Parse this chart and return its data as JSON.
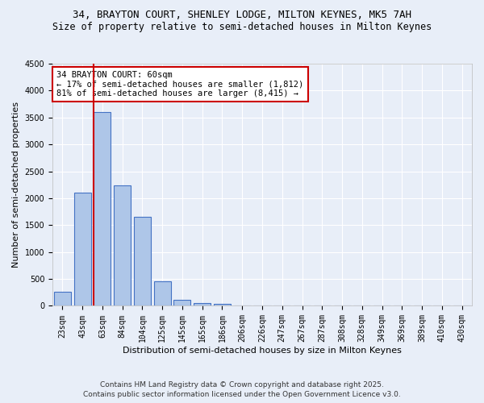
{
  "title1": "34, BRAYTON COURT, SHENLEY LODGE, MILTON KEYNES, MK5 7AH",
  "title2": "Size of property relative to semi-detached houses in Milton Keynes",
  "xlabel": "Distribution of semi-detached houses by size in Milton Keynes",
  "ylabel": "Number of semi-detached properties",
  "categories": [
    "23sqm",
    "43sqm",
    "63sqm",
    "84sqm",
    "104sqm",
    "125sqm",
    "145sqm",
    "165sqm",
    "186sqm",
    "206sqm",
    "226sqm",
    "247sqm",
    "267sqm",
    "287sqm",
    "308sqm",
    "328sqm",
    "349sqm",
    "369sqm",
    "389sqm",
    "410sqm",
    "430sqm"
  ],
  "values": [
    255,
    2100,
    3600,
    2240,
    1650,
    450,
    110,
    55,
    30,
    0,
    0,
    0,
    0,
    0,
    0,
    0,
    0,
    0,
    0,
    0,
    0
  ],
  "bar_color": "#aec6e8",
  "bar_edge_color": "#4472c4",
  "bg_color": "#e8eef8",
  "grid_color": "#ffffff",
  "red_line_index": 2,
  "red_line_color": "#cc0000",
  "annotation_line1": "34 BRAYTON COURT: 60sqm",
  "annotation_line2": "← 17% of semi-detached houses are smaller (1,812)",
  "annotation_line3": "81% of semi-detached houses are larger (8,415) →",
  "annotation_box_color": "#ffffff",
  "annotation_edge_color": "#cc0000",
  "footer1": "Contains HM Land Registry data © Crown copyright and database right 2025.",
  "footer2": "Contains public sector information licensed under the Open Government Licence v3.0.",
  "ylim": [
    0,
    4500
  ],
  "title_fontsize": 9,
  "subtitle_fontsize": 8.5,
  "annotation_fontsize": 7.5,
  "axis_label_fontsize": 8,
  "tick_fontsize": 7,
  "footer_fontsize": 6.5
}
